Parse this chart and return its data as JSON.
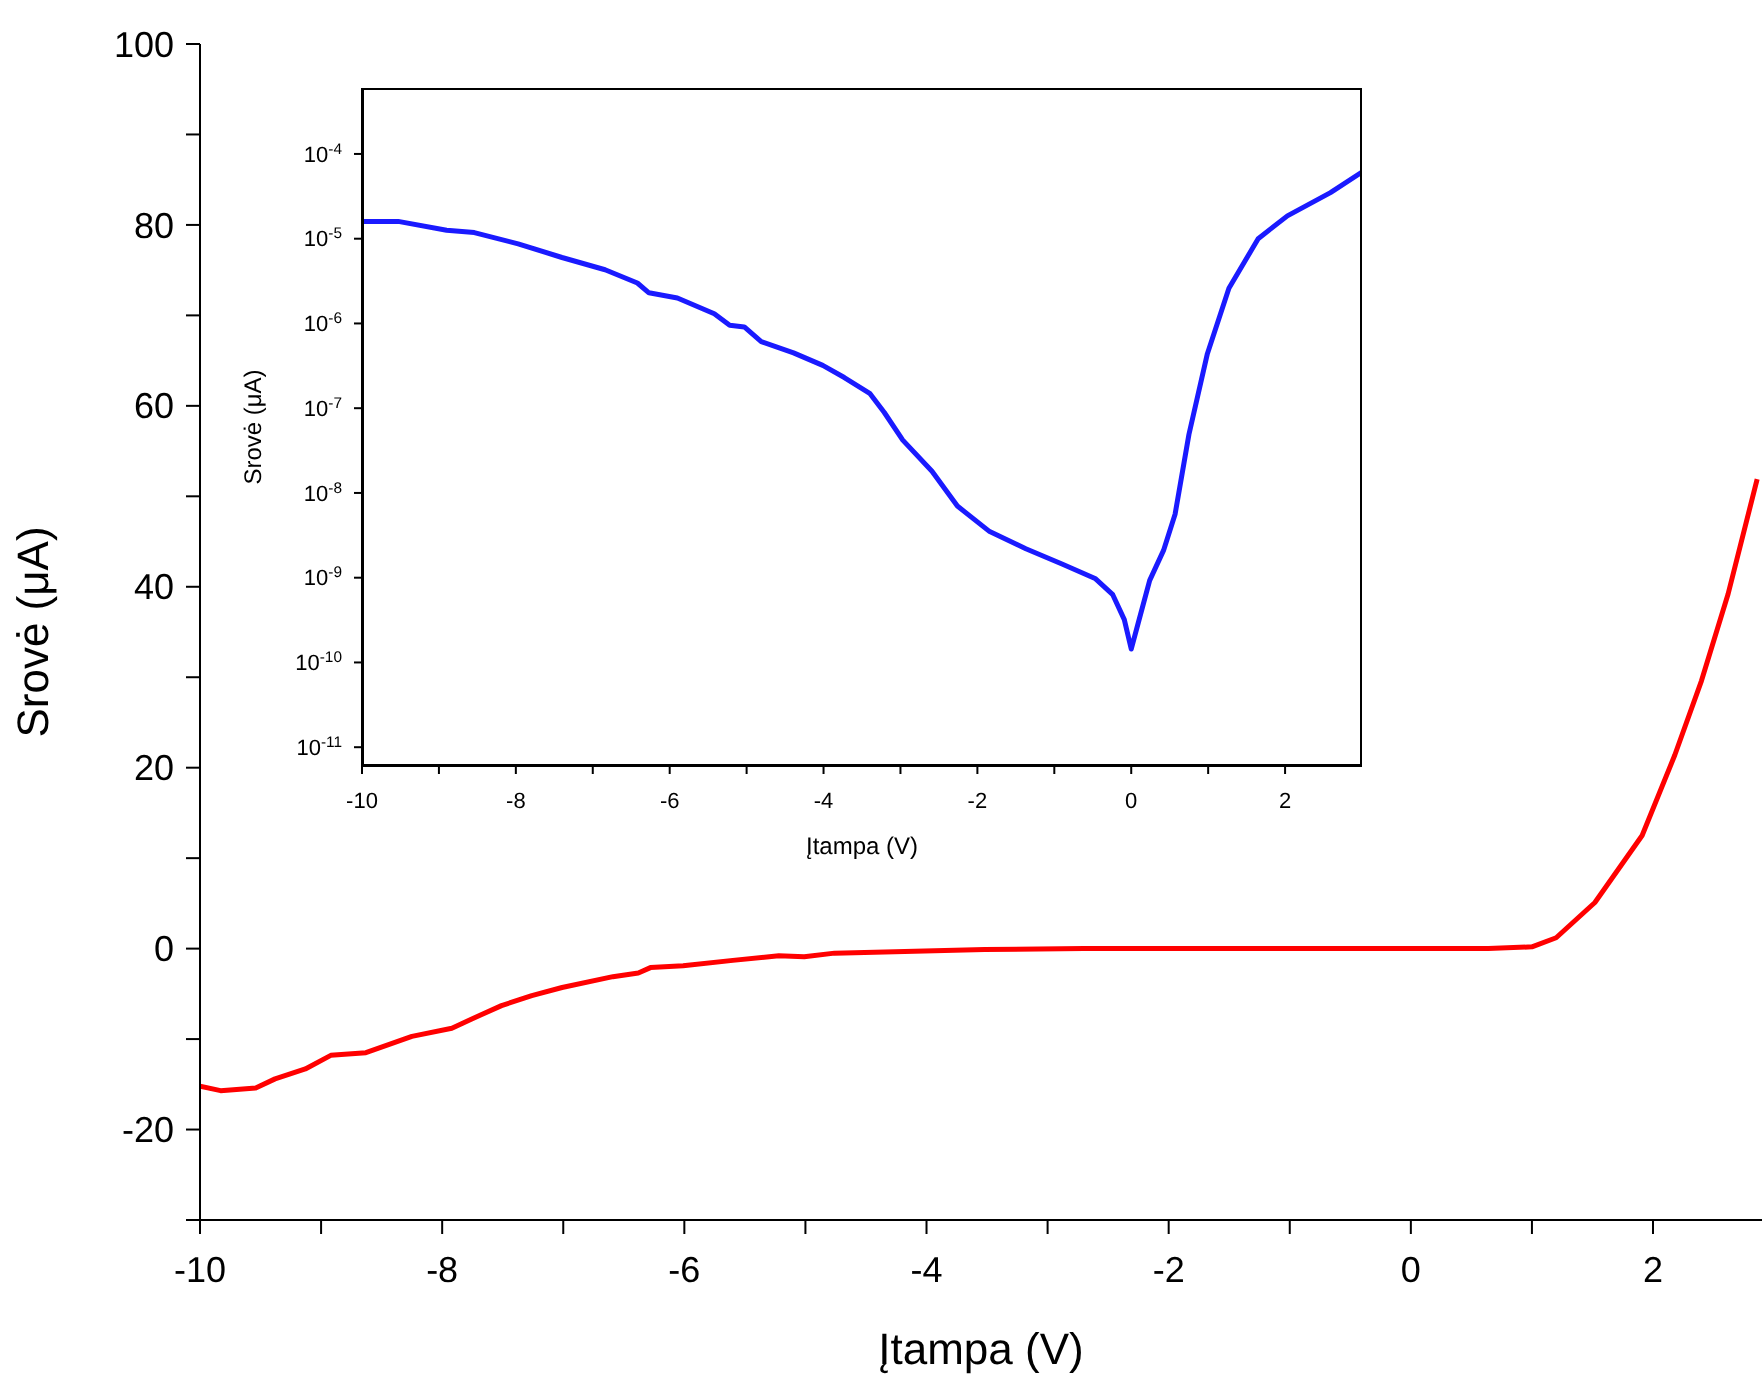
{
  "chart_data": [
    {
      "type": "line",
      "xlabel": "Įtampa (V)",
      "ylabel": "Srovė (μA)",
      "xlim": [
        -10,
        2.9
      ],
      "ylim": [
        -30,
        100
      ],
      "xticks": [
        -10,
        {
          "value": -9,
          "label": null
        },
        -8,
        {
          "value": -7,
          "label": null
        },
        -6,
        {
          "value": -5,
          "label": null
        },
        -4,
        {
          "value": -3,
          "label": null
        },
        -2,
        {
          "value": -1,
          "label": null
        },
        0,
        {
          "value": 1,
          "label": null
        },
        2
      ],
      "yticks": [
        {
          "value": -30,
          "label": null
        },
        -20,
        {
          "value": -10,
          "label": null
        },
        0,
        {
          "value": 10,
          "label": null
        },
        20,
        {
          "value": 30,
          "label": null
        },
        40,
        {
          "value": 50,
          "label": null
        },
        60,
        {
          "value": 70,
          "label": null
        },
        80,
        {
          "value": 90,
          "label": null
        },
        100
      ],
      "marker": "none",
      "line_style": "solid",
      "series": [
        {
          "color": "#ff0000",
          "x": [
            -10,
            -9.83,
            -9.54,
            -9.38,
            -9.13,
            -8.92,
            -8.63,
            -8.25,
            -7.92,
            -7.76,
            -7.51,
            -7.26,
            -7.01,
            -6.59,
            -6.38,
            -6.28,
            -6.01,
            -5.6,
            -5.22,
            -5.01,
            -4.76,
            -3.52,
            -2.7,
            0.64,
            1.0,
            1.2,
            1.52,
            1.91,
            2.18,
            2.4,
            2.62,
            2.86
          ],
          "values": [
            -15.2,
            -15.7,
            -15.4,
            -14.4,
            -13.3,
            -11.8,
            -11.5,
            -9.7,
            -8.8,
            -7.8,
            -6.3,
            -5.2,
            -4.3,
            -3.1,
            -2.7,
            -2.1,
            -1.9,
            -1.3,
            -0.8,
            -0.9,
            -0.5,
            -0.1,
            0,
            0,
            0.2,
            1.2,
            5.1,
            12.5,
            21.4,
            29.6,
            39.2,
            51.9
          ]
        }
      ]
    },
    {
      "type": "line",
      "xlabel": "Įtampa (V)",
      "ylabel": "Srovė (μA)",
      "xlim": [
        -10,
        3
      ],
      "ylim": [
        6e-12,
        0.0006
      ],
      "log": "y",
      "xticks": [
        -10,
        {
          "value": -9,
          "label": null
        },
        -8,
        {
          "value": -7,
          "label": null
        },
        -6,
        {
          "value": -5,
          "label": null
        },
        -4,
        {
          "value": -3,
          "label": null
        },
        -2,
        {
          "value": -1,
          "label": null
        },
        0,
        {
          "value": 1,
          "label": null
        },
        2
      ],
      "yticks": [
        {
          "value": 1e-11,
          "label": "10$^{-11}$"
        },
        {
          "value": 1e-10,
          "label": "10$^{-10}$"
        },
        {
          "value": 1e-09,
          "label": "10$^{-9}$"
        },
        {
          "value": 1e-08,
          "label": "10$^{-8}$"
        },
        {
          "value": 1e-07,
          "label": "10$^{-7}$"
        },
        {
          "value": 1e-06,
          "label": "10$^{-6}$"
        },
        {
          "value": 1e-05,
          "label": "10$^{-5}$"
        },
        {
          "value": 0.0001,
          "label": "10$^{-4}$"
        }
      ],
      "marker": "none",
      "line_style": "solid",
      "series": [
        {
          "color": "#1a1aff",
          "x": [
            -10,
            -9.53,
            -8.9,
            -8.54,
            -7.97,
            -7.4,
            -6.84,
            -6.42,
            -6.27,
            -5.9,
            -5.42,
            -5.22,
            -5.03,
            -4.81,
            -4.39,
            -4.01,
            -3.73,
            -3.4,
            -3.21,
            -2.97,
            -2.59,
            -2.26,
            -1.84,
            -1.37,
            -0.9,
            -0.47,
            -0.24,
            -0.09,
            0,
            0.09,
            0.24,
            0.42,
            0.57,
            0.75,
            0.99,
            1.27,
            1.65,
            2.03,
            2.59,
            3.0
          ],
          "values": [
            1.6e-05,
            1.6e-05,
            1.26e-05,
            1.18e-05,
            8.7e-06,
            6e-06,
            4.3e-06,
            3e-06,
            2.3e-06,
            2e-06,
            1.3e-06,
            9.5e-07,
            9.1e-07,
            6.1e-07,
            4.5e-07,
            3.2e-07,
            2.3e-07,
            1.5e-07,
            8.9e-08,
            4.2e-08,
            1.8e-08,
            7e-09,
            3.5e-09,
            2.2e-09,
            1.45e-09,
            9.8e-10,
            6.3e-10,
            3.2e-10,
            1.44e-10,
            2.9e-10,
            9.3e-10,
            2.1e-09,
            5.6e-09,
            4.9e-08,
            4.4e-07,
            2.6e-06,
            1e-05,
            1.86e-05,
            3.5e-05,
            6.1e-05
          ]
        }
      ]
    }
  ]
}
